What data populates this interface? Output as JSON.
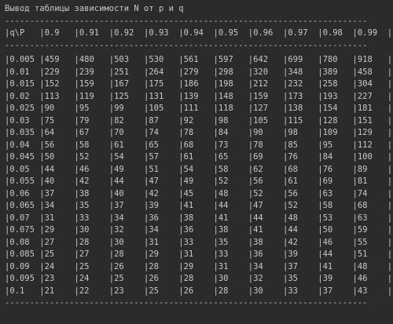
{
  "console": {
    "title": "Вывод таблицы зависимости N от p и q",
    "rule": "-------------------------------------------------------------------------",
    "header": "|q\\P   |0.9   |0.91  |0.92  |0.93  |0.94  |0.95  |0.96  |0.97  |0.98  |0.99  |",
    "rows": [
      "|0.005 |459   |480   |503   |530   |561   |597   |642   |699   |780   |918   |",
      "|0.01  |229   |239   |251   |264   |279   |298   |320   |348   |389   |458   |",
      "|0.015 |152   |159   |167   |175   |186   |198   |212   |232   |258   |304   |",
      "|0.02  |113   |119   |125   |131   |139   |148   |159   |173   |193   |227   |",
      "|0.025 |90    |95    |99    |105   |111   |118   |127   |138   |154   |181   |",
      "|0.03  |75    |79    |82    |87    |92    |98    |105   |115   |128   |151   |",
      "|0.035 |64    |67    |70    |74    |78    |84    |90    |98    |109   |129   |",
      "|0.04  |56    |58    |61    |65    |68    |73    |78    |85    |95    |112   |",
      "|0.045 |50    |52    |54    |57    |61    |65    |69    |76    |84    |100   |",
      "|0.05  |44    |46    |49    |51    |54    |58    |62    |68    |76    |89    |",
      "|0.055 |40    |42    |44    |47    |49    |52    |56    |61    |69    |81    |",
      "|0.06  |37    |38    |40    |42    |45    |48    |52    |56    |63    |74    |",
      "|0.065 |34    |35    |37    |39    |41    |44    |47    |52    |58    |68    |",
      "|0.07  |31    |33    |34    |36    |38    |41    |44    |48    |53    |63    |",
      "|0.075 |29    |30    |32    |34    |36    |38    |41    |44    |50    |59    |",
      "|0.08  |27    |28    |30    |31    |33    |35    |38    |42    |46    |55    |",
      "|0.085 |25    |27    |28    |29    |31    |33    |36    |39    |44    |51    |",
      "|0.09  |24    |25    |26    |28    |29    |31    |34    |37    |41    |48    |",
      "|0.095 |23    |24    |25    |26    |28    |30    |32    |35    |39    |46    |",
      "|0.1   |21    |22    |23    |25    |26    |28    |30    |33    |37    |43    |"
    ]
  }
}
